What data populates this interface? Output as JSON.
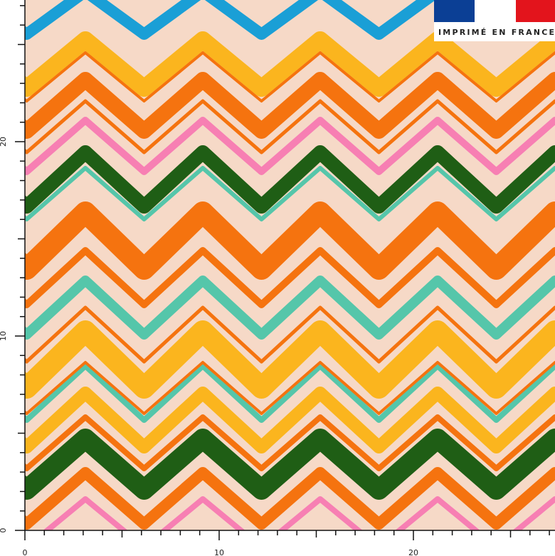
{
  "badge": {
    "text": "IMPRIMÉ EN FRANCE"
  },
  "ruler": {
    "bottom": [
      "0",
      "10",
      "20"
    ],
    "left": [
      "0",
      "10",
      "20"
    ]
  }
}
